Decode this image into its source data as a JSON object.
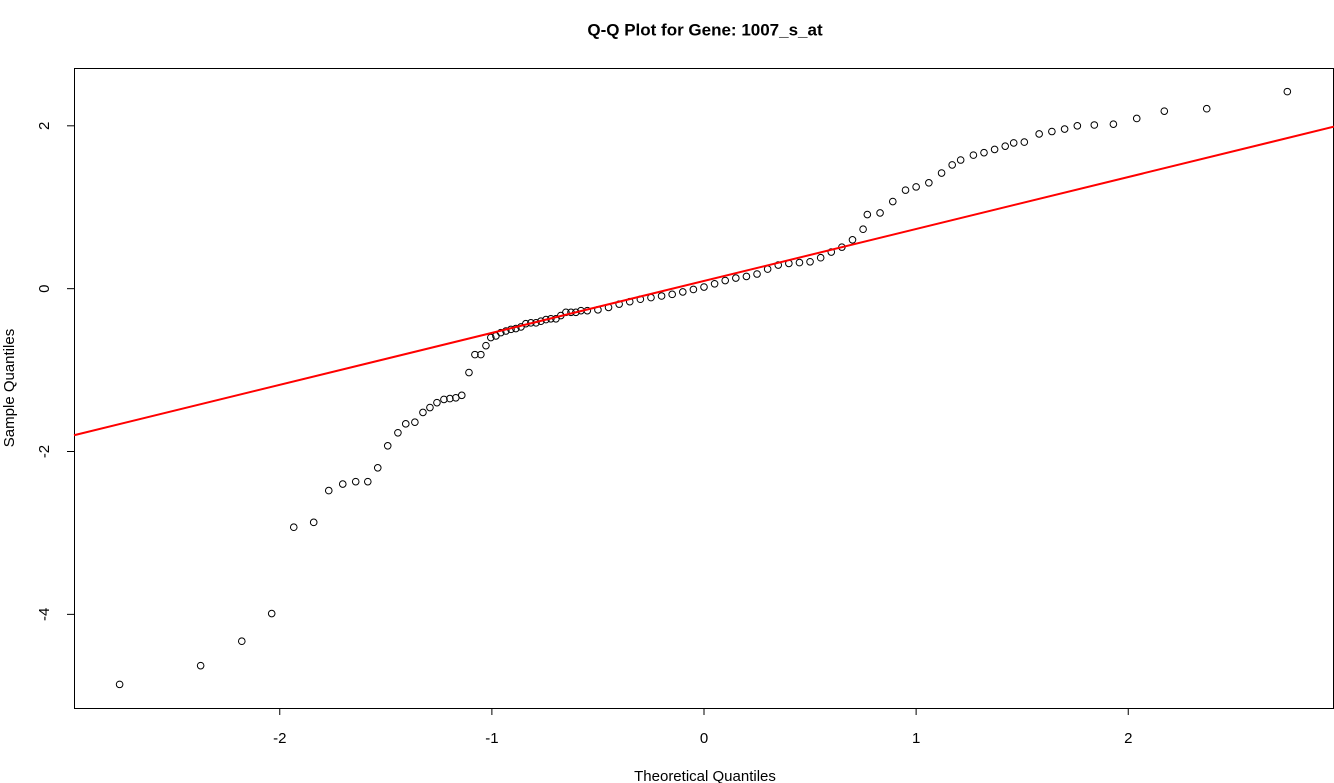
{
  "chart_data": {
    "type": "scatter",
    "title": "Q-Q Plot for Gene: 1007_s_at",
    "x_label": "Theoretical Quantiles",
    "y_label": "Sample Quantiles",
    "xlim": [
      -2.97,
      2.97
    ],
    "ylim": [
      -5.15,
      2.71
    ],
    "xticks": [
      -2,
      -1,
      0,
      1,
      2
    ],
    "yticks": [
      -4,
      -2,
      0,
      2
    ],
    "point_color": "#000000",
    "x": [
      -2.755,
      -2.373,
      -2.179,
      -2.038,
      -1.934,
      -1.84,
      -1.769,
      -1.703,
      -1.642,
      -1.585,
      -1.538,
      -1.491,
      -1.443,
      -1.406,
      -1.363,
      -1.325,
      -1.292,
      -1.259,
      -1.226,
      -1.198,
      -1.17,
      -1.142,
      -1.108,
      -1.08,
      -1.052,
      -1.028,
      -1.005,
      -0.981,
      -0.958,
      -0.934,
      -0.91,
      -0.887,
      -0.863,
      -0.84,
      -0.816,
      -0.792,
      -0.769,
      -0.745,
      -0.722,
      -0.698,
      -0.675,
      -0.651,
      -0.627,
      -0.604,
      -0.58,
      -0.55,
      -0.5,
      -0.45,
      -0.4,
      -0.35,
      -0.3,
      -0.25,
      -0.2,
      -0.15,
      -0.1,
      -0.05,
      0,
      0.05,
      0.1,
      0.15,
      0.2,
      0.25,
      0.3,
      0.35,
      0.4,
      0.45,
      0.5,
      0.55,
      0.6,
      0.65,
      0.7,
      0.75,
      0.77,
      0.83,
      0.89,
      0.95,
      1.0,
      1.06,
      1.12,
      1.17,
      1.21,
      1.27,
      1.32,
      1.37,
      1.42,
      1.46,
      1.51,
      1.58,
      1.64,
      1.7,
      1.76,
      1.84,
      1.93,
      2.04,
      2.17,
      2.37,
      2.75
    ],
    "values": [
      -4.86,
      -4.63,
      -4.33,
      -3.99,
      -2.93,
      -2.87,
      -2.48,
      -2.4,
      -2.37,
      -2.37,
      -2.2,
      -1.93,
      -1.77,
      -1.66,
      -1.64,
      -1.52,
      -1.46,
      -1.4,
      -1.36,
      -1.35,
      -1.34,
      -1.31,
      -1.03,
      -0.81,
      -0.81,
      -0.7,
      -0.6,
      -0.58,
      -0.54,
      -0.52,
      -0.5,
      -0.49,
      -0.47,
      -0.43,
      -0.42,
      -0.42,
      -0.4,
      -0.38,
      -0.37,
      -0.37,
      -0.33,
      -0.29,
      -0.29,
      -0.29,
      -0.27,
      -0.27,
      -0.26,
      -0.23,
      -0.19,
      -0.16,
      -0.13,
      -0.11,
      -0.09,
      -0.07,
      -0.04,
      -0.01,
      0.02,
      0.06,
      0.1,
      0.13,
      0.15,
      0.18,
      0.24,
      0.29,
      0.31,
      0.32,
      0.33,
      0.38,
      0.45,
      0.51,
      0.6,
      0.73,
      0.91,
      0.93,
      1.07,
      1.21,
      1.25,
      1.3,
      1.42,
      1.52,
      1.58,
      1.64,
      1.67,
      1.71,
      1.75,
      1.79,
      1.8,
      1.9,
      1.93,
      1.96,
      2.0,
      2.01,
      2.02,
      2.09,
      2.18,
      2.21,
      2.42
    ],
    "reference_line": {
      "x": [
        -2.97,
        2.97
      ],
      "values": [
        -1.8,
        1.99
      ],
      "color": "#ff0000"
    }
  }
}
